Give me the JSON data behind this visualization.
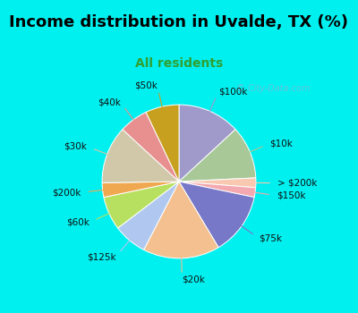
{
  "title": "Income distribution in Uvalde, TX (%)",
  "subtitle": "All residents",
  "watermark": "© City-Data.com",
  "slices": [
    {
      "label": "$100k",
      "value": 13,
      "color": "#a09aca"
    },
    {
      "label": "$10k",
      "value": 11,
      "color": "#a8c898"
    },
    {
      "label": "> $200k",
      "value": 2,
      "color": "#f8c8b0"
    },
    {
      "label": "$150k",
      "value": 2,
      "color": "#f4a8b0"
    },
    {
      "label": "$75k",
      "value": 13,
      "color": "#7878c8"
    },
    {
      "label": "$20k",
      "value": 16,
      "color": "#f4c090"
    },
    {
      "label": "$125k",
      "value": 7,
      "color": "#b0c8f0"
    },
    {
      "label": "$60k",
      "value": 7,
      "color": "#b8e060"
    },
    {
      "label": "$200k",
      "value": 3,
      "color": "#f0a850"
    },
    {
      "label": "$30k",
      "value": 12,
      "color": "#d0c8a8"
    },
    {
      "label": "$40k",
      "value": 6,
      "color": "#e89090"
    },
    {
      "label": "$50k",
      "value": 7,
      "color": "#c8a020"
    }
  ],
  "bg_cyan": "#00f0f0",
  "bg_chart_white": "#f0fff8",
  "title_color": "#000000",
  "subtitle_color": "#30a030",
  "label_color": "#101010",
  "figsize": [
    4.0,
    3.5
  ],
  "dpi": 100,
  "title_fontsize": 13,
  "subtitle_fontsize": 10,
  "label_fontsize": 7.5
}
